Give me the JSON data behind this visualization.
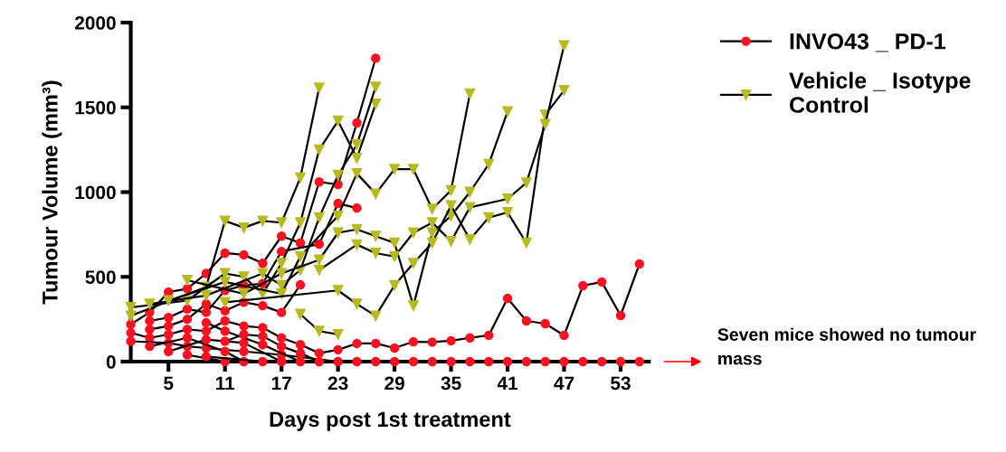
{
  "chart_data": {
    "type": "line",
    "xlabel": "Days post 1st treatment",
    "ylabel": "Tumour Volume (mm³)",
    "xlim": [
      1,
      56
    ],
    "xticks": [
      5,
      11,
      17,
      23,
      29,
      35,
      41,
      47,
      53
    ],
    "ylim": [
      0,
      2000
    ],
    "yticks": [
      0,
      500,
      1000,
      1500,
      2000
    ],
    "grid": false,
    "legend": "top right",
    "line_style": "solid",
    "annotations": [
      "Seven mice showed no tumour mass"
    ],
    "series": [
      {
        "name": "INVO43 _ PD-1",
        "color": "#ff1020",
        "marker": "circle",
        "x": [
          1,
          3,
          5,
          7,
          9,
          11,
          13,
          15,
          17,
          19,
          21,
          23,
          25,
          27
        ],
        "values": [
          220,
          290,
          410,
          430,
          520,
          640,
          630,
          580,
          740,
          700,
          1060,
          1045,
          1408,
          1790
        ]
      },
      {
        "color": "#ff1020",
        "marker": "circle",
        "x": [
          3,
          5,
          7,
          9,
          11,
          13,
          15,
          17,
          21,
          23,
          25
        ],
        "values": [
          240,
          260,
          310,
          290,
          420,
          450,
          460,
          650,
          693,
          933,
          906
        ]
      },
      {
        "color": "#ff1020",
        "marker": "circle",
        "x": [
          3,
          5,
          7,
          9,
          11,
          13,
          15,
          17,
          19
        ],
        "values": [
          190,
          210,
          250,
          340,
          300,
          350,
          330,
          290,
          453
        ]
      },
      {
        "color": "#ff1020",
        "marker": "circle",
        "x": [
          1,
          3,
          5,
          7,
          9,
          11,
          13,
          15,
          17,
          19,
          21,
          23,
          25,
          27,
          29,
          31,
          33,
          35,
          37,
          39,
          41,
          43,
          45,
          47,
          49,
          51,
          53,
          55
        ],
        "values": [
          170,
          140,
          160,
          190,
          180,
          240,
          210,
          200,
          140,
          100,
          50,
          70,
          107,
          107,
          80,
          117,
          115,
          123,
          140,
          155,
          373,
          240,
          224,
          155,
          448,
          470,
          272,
          576
        ]
      },
      {
        "color": "#ff1020",
        "marker": "circle",
        "x": [
          1,
          5,
          7,
          9,
          13,
          17,
          23,
          25,
          27,
          29,
          31,
          33,
          35,
          37,
          39,
          41,
          43,
          45,
          47,
          49,
          51,
          53,
          55
        ],
        "values": [
          120,
          110,
          90,
          80,
          60,
          40,
          0,
          0,
          0,
          0,
          0,
          0,
          0,
          0,
          0,
          0,
          0,
          0,
          0,
          0,
          0,
          0,
          0
        ]
      },
      {
        "color": "#ff1020",
        "marker": "circle",
        "x": [
          3,
          7,
          11,
          13
        ],
        "values": [
          90,
          140,
          60,
          0
        ]
      },
      {
        "color": "#ff1020",
        "marker": "circle",
        "x": [
          5,
          9,
          13,
          17
        ],
        "values": [
          60,
          130,
          110,
          0
        ]
      },
      {
        "color": "#ff1020",
        "marker": "circle",
        "x": [
          7,
          11
        ],
        "values": [
          40,
          0
        ]
      },
      {
        "color": "#ff1020",
        "marker": "circle",
        "x": [
          9,
          15
        ],
        "values": [
          30,
          0
        ]
      },
      {
        "color": "#ff1020",
        "marker": "circle",
        "x": [
          9,
          11,
          15,
          19
        ],
        "values": [
          230,
          180,
          100,
          0
        ]
      },
      {
        "color": "#ff1020",
        "marker": "circle",
        "x": [
          11,
          13,
          15,
          17,
          19,
          21
        ],
        "values": [
          120,
          160,
          150,
          90,
          50,
          0
        ]
      },
      {
        "name": "Vehicle _ Isotype Control",
        "color": "#b8b820",
        "marker": "triangle",
        "x": [
          1,
          9,
          11,
          13,
          15,
          17,
          19,
          21
        ],
        "values": [
          270,
          440,
          830,
          790,
          830,
          820,
          1085,
          1615
        ]
      },
      {
        "color": "#b8b820",
        "marker": "triangle",
        "x": [
          1,
          7,
          11,
          13,
          15,
          17,
          19,
          21,
          23,
          25,
          27
        ],
        "values": [
          320,
          360,
          520,
          500,
          400,
          580,
          820,
          1250,
          1420,
          1200,
          1520
        ]
      },
      {
        "color": "#b8b820",
        "marker": "triangle",
        "x": [
          3,
          9,
          15,
          17,
          19,
          21,
          23,
          25,
          27
        ],
        "values": [
          340,
          390,
          520,
          450,
          540,
          850,
          1100,
          1280,
          1620
        ]
      },
      {
        "color": "#b8b820",
        "marker": "triangle",
        "x": [
          5,
          11,
          17,
          19,
          23,
          25,
          27,
          29,
          31,
          33,
          35,
          37
        ],
        "values": [
          360,
          470,
          400,
          620,
          860,
          1110,
          990,
          1135,
          1135,
          900,
          1010,
          1580
        ]
      },
      {
        "color": "#b8b820",
        "marker": "triangle",
        "x": [
          7,
          13,
          17,
          21,
          23,
          25,
          27,
          29,
          31,
          33,
          35,
          37,
          39,
          41
        ],
        "values": [
          480,
          400,
          520,
          600,
          760,
          780,
          740,
          700,
          330,
          760,
          860,
          1000,
          1165,
          1475
        ]
      },
      {
        "color": "#b8b820",
        "marker": "triangle",
        "x": [
          11,
          23,
          25,
          27,
          29,
          31,
          33,
          35,
          37,
          39,
          41,
          43,
          45,
          47
        ],
        "values": [
          350,
          420,
          340,
          270,
          450,
          580,
          700,
          920,
          720,
          850,
          880,
          700,
          1455,
          1600
        ]
      },
      {
        "color": "#b8b820",
        "marker": "triangle",
        "x": [
          21,
          25,
          27,
          29,
          31,
          33,
          35,
          37,
          41,
          43,
          45,
          47
        ],
        "values": [
          540,
          690,
          640,
          620,
          760,
          820,
          710,
          910,
          960,
          1055,
          1400,
          1865
        ]
      },
      {
        "color": "#b8b820",
        "marker": "triangle",
        "x": [
          19,
          21,
          23
        ],
        "values": [
          280,
          180,
          160
        ]
      }
    ]
  }
}
